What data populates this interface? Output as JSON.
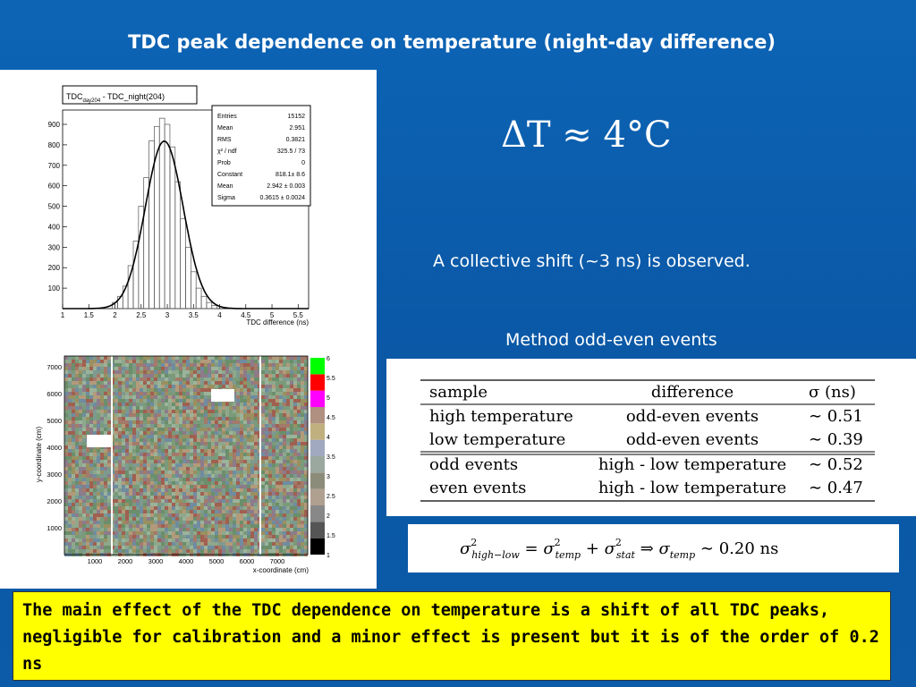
{
  "title": "TDC peak dependence on temperature (night-day difference)",
  "delta_t_formula": "ΔT ≈ 4°C",
  "shift_text": "A collective shift (~3 ns) is observed.",
  "method_text": "Method odd-even events",
  "histogram": {
    "box_title_main": "TDC",
    "box_title_sub": "day204",
    "box_title_rest": " - TDC_night(204)",
    "xlabel": "TDC difference (ns)",
    "xticks": [
      "1",
      "1.5",
      "2",
      "2.5",
      "3",
      "3.5",
      "4",
      "4.5",
      "5",
      "5.5"
    ],
    "yticks": [
      "100",
      "200",
      "300",
      "400",
      "500",
      "600",
      "700",
      "800",
      "900"
    ],
    "stats": [
      {
        "label": "Entries",
        "value": "15152"
      },
      {
        "label": "Mean",
        "value": "2.951"
      },
      {
        "label": "RMS",
        "value": "0.3821"
      },
      {
        "label": "χ² / ndf",
        "value": "325.5 / 73"
      },
      {
        "label": "Prob",
        "value": "0"
      },
      {
        "label": "Constant",
        "value": "818.1± 8.6"
      },
      {
        "label": "Mean",
        "value": "2.942 ± 0.003"
      },
      {
        "label": "Sigma",
        "value": "0.3615 ± 0.0024"
      }
    ]
  },
  "chart_data": {
    "type": "bar",
    "title": "TDC_day204 - TDC_night(204)",
    "xlabel": "TDC difference (ns)",
    "ylabel": "",
    "xlim": [
      1,
      5.7
    ],
    "ylim": [
      0,
      970
    ],
    "fit": {
      "constant": 818.1,
      "mean": 2.942,
      "sigma": 0.3615
    },
    "x": [
      2.0,
      2.1,
      2.2,
      2.3,
      2.4,
      2.5,
      2.6,
      2.7,
      2.8,
      2.9,
      3.0,
      3.1,
      3.2,
      3.3,
      3.4,
      3.5,
      3.6,
      3.7,
      3.8,
      3.9
    ],
    "values": [
      30,
      60,
      110,
      210,
      330,
      500,
      640,
      820,
      890,
      930,
      900,
      790,
      620,
      440,
      300,
      180,
      100,
      60,
      30,
      15
    ]
  },
  "heatmap": {
    "ylabel": "y-coordinate (cm)",
    "xlabel": "x-coordinate (cm)",
    "xticks": [
      "1000",
      "2000",
      "3000",
      "4000",
      "5000",
      "6000",
      "7000"
    ],
    "yticks": [
      "1000",
      "2000",
      "3000",
      "4000",
      "5000",
      "6000",
      "7000"
    ],
    "scale": [
      "1",
      "1.5",
      "2",
      "2.5",
      "3",
      "3.5",
      "4",
      "4.5",
      "5",
      "5.5",
      "6"
    ],
    "colors": [
      "#6b8e6b",
      "#7a9a7a",
      "#8fa88c",
      "#9bb39b",
      "#a37a6a",
      "#8c7b8b",
      "#7d9a8f",
      "#b29a7a",
      "#a06050",
      "#6f8ca0",
      "#9a9060"
    ]
  },
  "table": {
    "headers": [
      "sample",
      "difference",
      "σ (ns)"
    ],
    "rows": [
      [
        "high temperature",
        "odd-even events",
        "∼ 0.51"
      ],
      [
        "low temperature",
        "odd-even events",
        "∼ 0.39"
      ],
      [
        "odd events",
        "high - low temperature",
        "∼ 0.52"
      ],
      [
        "even events",
        "high - low temperature",
        "∼ 0.47"
      ]
    ]
  },
  "formula": {
    "lhs_sub": "high−low",
    "rhs1_sub": "temp",
    "rhs2_sub": "stat",
    "result_sub": "temp",
    "result_value": "∼ 0.20 ns"
  },
  "conclusion": "The main effect of the TDC dependence on temperature is a shift of all TDC peaks, negligible for calibration and a minor effect is present  but it is of the order of 0.2 ns"
}
